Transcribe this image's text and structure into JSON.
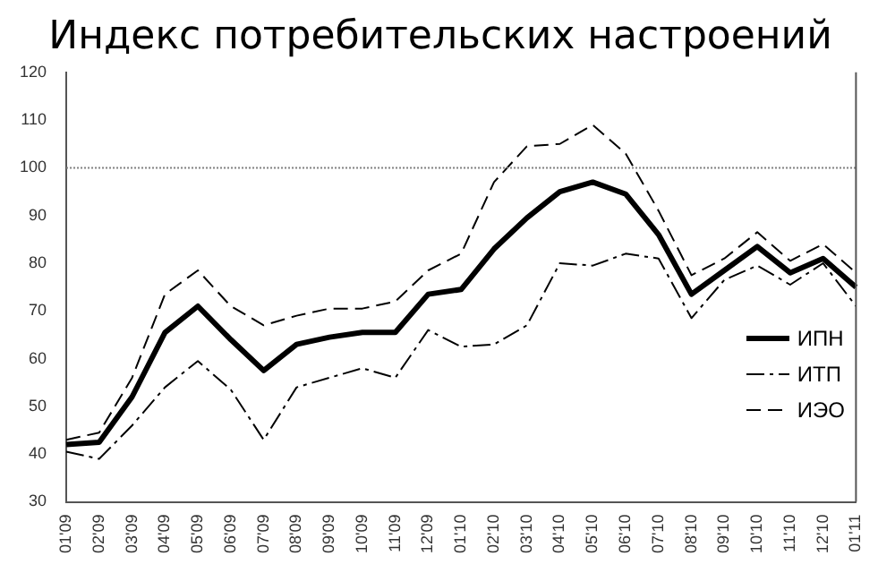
{
  "chart_data": {
    "type": "line",
    "title": "Индекс потребительских настроений",
    "categories": [
      "01'09",
      "02'09",
      "03'09",
      "04'09",
      "05'09",
      "06'09",
      "07'09",
      "08'09",
      "09'09",
      "10'09",
      "11'09",
      "12'09",
      "01'10",
      "02'10",
      "03'10",
      "04'10",
      "05'10",
      "06'10",
      "07'10",
      "08'10",
      "09'10",
      "10'10",
      "11'10",
      "12'10",
      "01'11"
    ],
    "series": [
      {
        "name": "ИПН",
        "color": "#000000",
        "line_style": "solid",
        "values": [
          42,
          42.5,
          52,
          65.5,
          71,
          64,
          57.5,
          63,
          64.5,
          65.5,
          65.5,
          73.5,
          74.5,
          83,
          89.5,
          95,
          97,
          94.5,
          86,
          73.5,
          78.5,
          83.5,
          78,
          81,
          75
        ]
      },
      {
        "name": "ИТП",
        "color": "#000000",
        "line_style": "dotted",
        "values": [
          40.5,
          39,
          46,
          54,
          59.5,
          53.5,
          43,
          54,
          56,
          58,
          56,
          66,
          62.5,
          63,
          67,
          80,
          79.5,
          82,
          81,
          68.5,
          76.5,
          79.5,
          75.5,
          80,
          71
        ]
      },
      {
        "name": "ИЭО",
        "color": "#000000",
        "line_style": "dashed",
        "values": [
          43,
          44.5,
          56,
          73.5,
          78.5,
          71,
          67,
          69,
          70.5,
          70.5,
          72,
          78.5,
          82,
          97,
          104.5,
          105,
          109,
          103,
          91,
          77.5,
          81,
          86.5,
          80.5,
          84,
          78
        ]
      }
    ],
    "ylim": [
      30,
      120
    ],
    "yticks": [
      30,
      40,
      50,
      60,
      70,
      80,
      90,
      100,
      110,
      120
    ],
    "ref_lines": [
      {
        "axis": "y",
        "value": 100,
        "color": "#808080",
        "line_style": "dotted"
      }
    ],
    "grid": false,
    "legend": "bottom right",
    "marker": "none"
  }
}
